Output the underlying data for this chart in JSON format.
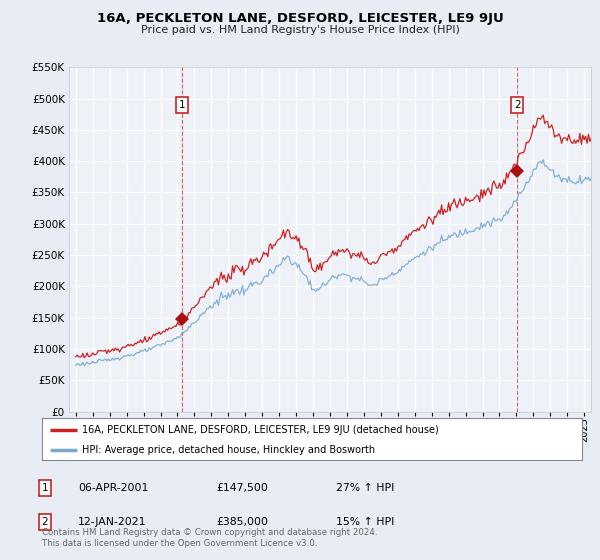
{
  "title": "16A, PECKLETON LANE, DESFORD, LEICESTER, LE9 9JU",
  "subtitle": "Price paid vs. HM Land Registry's House Price Index (HPI)",
  "legend_line1": "16A, PECKLETON LANE, DESFORD, LEICESTER, LE9 9JU (detached house)",
  "legend_line2": "HPI: Average price, detached house, Hinckley and Bosworth",
  "footnote": "Contains HM Land Registry data © Crown copyright and database right 2024.\nThis data is licensed under the Open Government Licence v3.0.",
  "sale1_label": "1",
  "sale1_date": "06-APR-2001",
  "sale1_price": "£147,500",
  "sale1_hpi": "27% ↑ HPI",
  "sale1_x": 2001.27,
  "sale1_y": 147500,
  "sale2_label": "2",
  "sale2_date": "12-JAN-2021",
  "sale2_price": "£385,000",
  "sale2_hpi": "15% ↑ HPI",
  "sale2_x": 2021.04,
  "sale2_y": 385000,
  "ylim": [
    0,
    550000
  ],
  "yticks": [
    0,
    50000,
    100000,
    150000,
    200000,
    250000,
    300000,
    350000,
    400000,
    450000,
    500000,
    550000
  ],
  "ytick_labels": [
    "£0",
    "£50K",
    "£100K",
    "£150K",
    "£200K",
    "£250K",
    "£300K",
    "£350K",
    "£400K",
    "£450K",
    "£500K",
    "£550K"
  ],
  "xlim_start": 1994.6,
  "xlim_end": 2025.4,
  "hpi_color": "#7aaad0",
  "price_color": "#cc2222",
  "background_color": "#e8edf5",
  "plot_bg_color": "#eef2f8",
  "grid_color": "#ffffff",
  "sale_marker_color": "#aa1111"
}
